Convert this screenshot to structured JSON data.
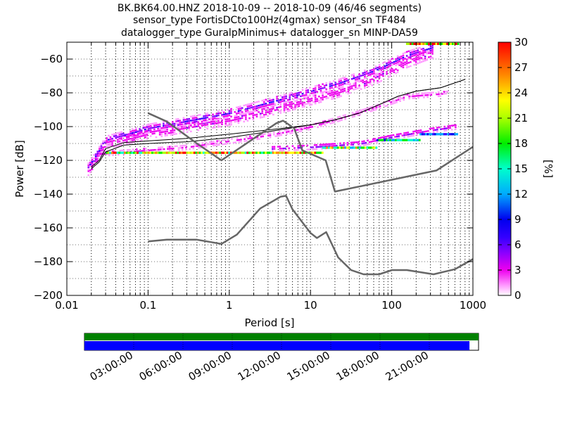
{
  "header": {
    "title_line1": "BK.BK64.00.HNZ   2018-10-09 -- 2018-10-09  (46/46 segments)",
    "title_line2": "sensor_type FortisDCto100Hz(4gmax) sensor_sn TF484",
    "title_line3": "datalogger_type GuralpMinimus+ datalogger_sn MINP-DA59"
  },
  "chart_data": {
    "type": "heatmap",
    "title": "BK.BK64.00.HNZ   2018-10-09 -- 2018-10-09  (46/46 segments)",
    "xlabel": "Period [s]",
    "ylabel": "Power [dB]",
    "xscale": "log",
    "xlim": [
      0.01,
      1000
    ],
    "ylim": [
      -200,
      -50
    ],
    "x_ticks": [
      "0.01",
      "0.1",
      "1",
      "10",
      "100",
      "1000"
    ],
    "y_ticks": [
      "−200",
      "−180",
      "−160",
      "−140",
      "−120",
      "−100",
      "−80",
      "−60"
    ],
    "grid": true,
    "colorbar": {
      "label": "[%]",
      "range": [
        0,
        30
      ],
      "ticks": [
        "0",
        "3",
        "6",
        "9",
        "12",
        "15",
        "18",
        "21",
        "24",
        "27",
        "30"
      ]
    },
    "noise_model_high": [
      [
        0.1,
        -92
      ],
      [
        0.17,
        -97
      ],
      [
        0.4,
        -110
      ],
      [
        0.8,
        -120
      ],
      [
        3.8,
        -98
      ],
      [
        4.6,
        -96.5
      ],
      [
        6.3,
        -101
      ],
      [
        7.9,
        -114
      ],
      [
        15.4,
        -120
      ],
      [
        20,
        -138.5
      ],
      [
        354.8,
        -126
      ],
      [
        1000,
        -112
      ]
    ],
    "noise_model_low": [
      [
        0.1,
        -168
      ],
      [
        0.17,
        -167
      ],
      [
        0.4,
        -167
      ],
      [
        0.8,
        -169.5
      ],
      [
        1.24,
        -164
      ],
      [
        2.4,
        -148.5
      ],
      [
        4.3,
        -141.5
      ],
      [
        5,
        -141
      ],
      [
        6,
        -149
      ],
      [
        10,
        -163
      ],
      [
        12,
        -166
      ],
      [
        15.6,
        -162.5
      ],
      [
        21.9,
        -177.5
      ],
      [
        31.6,
        -185
      ],
      [
        45,
        -187.5
      ],
      [
        70,
        -187.5
      ],
      [
        101,
        -185
      ],
      [
        154,
        -185
      ],
      [
        328,
        -187.5
      ],
      [
        600,
        -184.5
      ],
      [
        1000,
        -178.5
      ]
    ],
    "mean_curve": [
      [
        0.02,
        -124
      ],
      [
        0.025,
        -120
      ],
      [
        0.03,
        -113
      ],
      [
        0.05,
        -109.5
      ],
      [
        0.1,
        -108.5
      ],
      [
        0.3,
        -107
      ],
      [
        1,
        -104.5
      ],
      [
        3,
        -102
      ],
      [
        10,
        -99
      ],
      [
        20,
        -96
      ],
      [
        40,
        -92
      ],
      [
        70,
        -87
      ],
      [
        120,
        -82
      ],
      [
        200,
        -79
      ],
      [
        400,
        -77
      ],
      [
        700,
        -73
      ],
      [
        800,
        -72
      ]
    ],
    "mode_curve": [
      [
        0.02,
        -125
      ],
      [
        0.025,
        -121
      ],
      [
        0.03,
        -115
      ],
      [
        0.05,
        -111
      ],
      [
        0.1,
        -110
      ],
      [
        0.3,
        -109
      ],
      [
        1,
        -106.5
      ],
      [
        3,
        -103
      ],
      [
        10,
        -99
      ],
      [
        20,
        -96
      ],
      [
        40,
        -92
      ],
      [
        70,
        -87
      ],
      [
        120,
        -82
      ],
      [
        200,
        -79
      ],
      [
        400,
        -77
      ],
      [
        700,
        -73
      ],
      [
        800,
        -72
      ]
    ],
    "density_bands": [
      {
        "x": [
          0.018,
          0.03,
          0.1,
          1,
          5,
          20,
          60,
          150,
          320
        ],
        "y": [
          -127,
          -110,
          -104,
          -96,
          -88,
          -80,
          -72,
          -62,
          -56
        ],
        "width_db": 6,
        "peak_pct": 3
      },
      {
        "x": [
          0.018,
          0.03,
          0.1,
          1,
          5,
          20,
          60,
          150,
          320
        ],
        "y": [
          -124,
          -108,
          -101,
          -92,
          -83,
          -75,
          -67,
          -58,
          -53
        ],
        "width_db": 5,
        "peak_pct": 5
      },
      {
        "x": [
          0.025,
          0.3,
          3,
          10,
          50,
          150,
          500
        ],
        "y": [
          -116,
          -112,
          -105,
          -100,
          -90,
          -82,
          -80
        ],
        "width_db": 3,
        "peak_pct": 2
      },
      {
        "x": [
          3,
          10,
          40,
          100,
          300,
          600
        ],
        "y": [
          -113,
          -112,
          -110,
          -106,
          -102,
          -100
        ],
        "width_db": 3,
        "peak_pct": 4
      }
    ],
    "hot_segments": [
      {
        "x_from": 0.03,
        "x_to": 14,
        "y": -115.5,
        "peak_pct": 30
      },
      {
        "x_from": 14,
        "x_to": 65,
        "y": -112.5,
        "peak_pct": 24
      },
      {
        "x_from": 65,
        "x_to": 220,
        "y": -108,
        "peak_pct": 18
      },
      {
        "x_from": 220,
        "x_to": 650,
        "y": -104.5,
        "peak_pct": 12
      },
      {
        "x_from": 150,
        "x_to": 650,
        "y": -51,
        "peak_pct": 30
      }
    ]
  },
  "timeline": {
    "labels": [
      "03:00:00",
      "06:00:00",
      "09:00:00",
      "12:00:00",
      "15:00:00",
      "18:00:00",
      "21:00:00"
    ],
    "data_fraction": 0.977,
    "colors": {
      "top_bar": "#008000",
      "data_bar": "#0000ff"
    }
  },
  "colors": {
    "model_line": "#666666",
    "mean_line": "#000000",
    "grid": "#000000"
  }
}
